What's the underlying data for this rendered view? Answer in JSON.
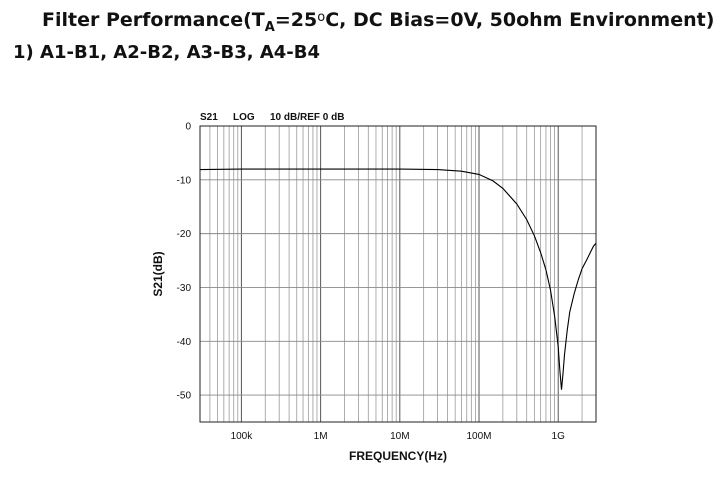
{
  "header": {
    "title_prefix": "Filter Performance(T",
    "title_sub": "A",
    "title_temp": "=25",
    "title_deg": "o",
    "title_suffix": "C, DC Bias=0V, 50ohm Environment)",
    "subtitle": "1) A1-B1, A2-B2, A3-B3, A4-B4"
  },
  "chart_data": {
    "type": "line",
    "header_labels": [
      "S21",
      "LOG",
      "10 dB/REF 0 dB"
    ],
    "xlabel": "FREQUENCY(Hz)",
    "ylabel": "S21(dB)",
    "x_scale": "log",
    "xlim": [
      30000,
      3000000000
    ],
    "ylim": [
      -55,
      0
    ],
    "x_ticks": [
      100000,
      1000000,
      10000000,
      100000000,
      1000000000
    ],
    "x_tick_labels": [
      "100k",
      "1M",
      "10M",
      "100M",
      "1G"
    ],
    "y_ticks": [
      0,
      -10,
      -20,
      -30,
      -40,
      -50
    ],
    "y_tick_labels": [
      "0",
      "-10",
      "-20",
      "-30",
      "-40",
      "-50"
    ],
    "grid": true,
    "line_color": "#000000",
    "grid_color": "#777777",
    "series": [
      {
        "x": [
          30000,
          100000,
          300000,
          1000000,
          3000000,
          10000000,
          30000000,
          60000000,
          100000000,
          150000000,
          200000000,
          300000000,
          400000000,
          500000000,
          600000000,
          700000000,
          800000000,
          900000000,
          1000000000,
          1050000000,
          1100000000,
          1150000000,
          1200000000,
          1300000000,
          1400000000,
          1600000000,
          1800000000,
          2000000000,
          2300000000,
          2600000000,
          2800000000,
          3000000000
        ],
        "y": [
          -8.1,
          -8.0,
          -8.0,
          -8.0,
          -8.0,
          -8.0,
          -8.1,
          -8.4,
          -9.0,
          -10.2,
          -11.6,
          -14.5,
          -17.4,
          -20.4,
          -23.5,
          -26.7,
          -30.5,
          -35.3,
          -41.0,
          -45.5,
          -49.0,
          -46.0,
          -42.5,
          -38.0,
          -34.5,
          -31.0,
          -28.5,
          -26.5,
          -24.8,
          -23.2,
          -22.3,
          -21.8
        ]
      }
    ]
  }
}
